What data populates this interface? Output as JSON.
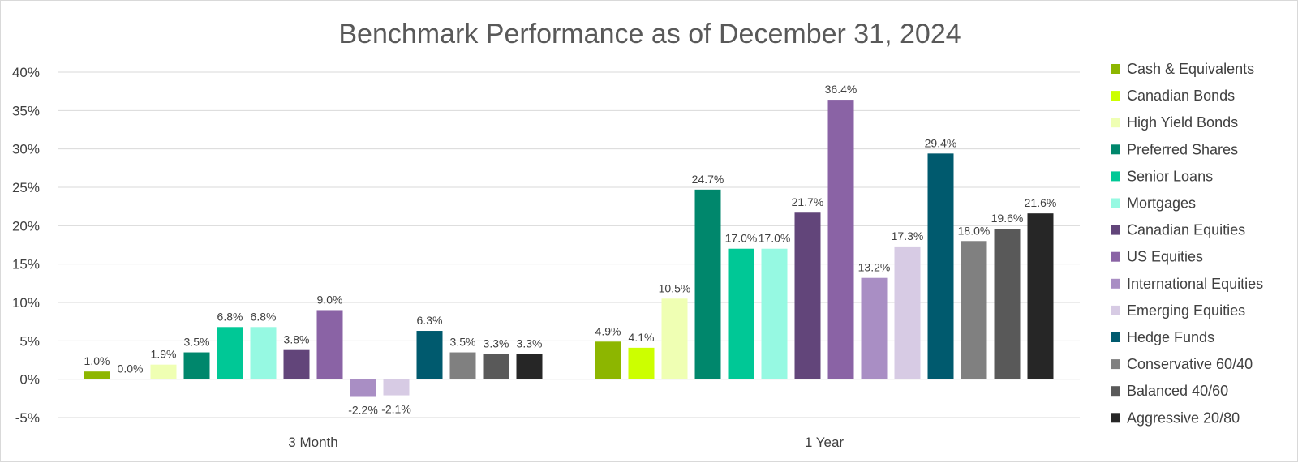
{
  "chart_data": {
    "type": "bar",
    "title": "Benchmark Performance as of December 31, 2024",
    "xlabel": "",
    "ylabel": "",
    "ylim": [
      -5,
      40
    ],
    "yticks": [
      -5,
      0,
      5,
      10,
      15,
      20,
      25,
      30,
      35,
      40
    ],
    "ytick_labels": [
      "-5%",
      "0%",
      "5%",
      "10%",
      "15%",
      "20%",
      "25%",
      "30%",
      "35%",
      "40%"
    ],
    "grid": true,
    "legend_position": "right",
    "categories": [
      "3 Month",
      "1 Year"
    ],
    "series": [
      {
        "name": "Cash & Equivalents",
        "color": "#8db600",
        "values": [
          1.0,
          4.9
        ],
        "labels": [
          "1.0%",
          "4.9%"
        ]
      },
      {
        "name": "Canadian Bonds",
        "color": "#ccff00",
        "values": [
          0.0,
          4.1
        ],
        "labels": [
          "0.0%",
          "4.1%"
        ]
      },
      {
        "name": "High Yield Bonds",
        "color": "#efffb3",
        "values": [
          1.9,
          10.5
        ],
        "labels": [
          "1.9%",
          "10.5%"
        ]
      },
      {
        "name": "Preferred Shares",
        "color": "#00876c",
        "values": [
          3.5,
          24.7
        ],
        "labels": [
          "3.5%",
          "24.7%"
        ]
      },
      {
        "name": "Senior Loans",
        "color": "#00c896",
        "values": [
          6.8,
          17.0
        ],
        "labels": [
          "6.8%",
          "17.0%"
        ]
      },
      {
        "name": "Mortgages",
        "color": "#96f9e2",
        "values": [
          6.8,
          17.0
        ],
        "labels": [
          "6.8%",
          "17.0%"
        ]
      },
      {
        "name": "Canadian Equities",
        "color": "#62457a",
        "values": [
          3.8,
          21.7
        ],
        "labels": [
          "3.8%",
          "21.7%"
        ]
      },
      {
        "name": "US Equities",
        "color": "#8a63a5",
        "values": [
          9.0,
          36.4
        ],
        "labels": [
          "9.0%",
          "36.4%"
        ]
      },
      {
        "name": "International Equities",
        "color": "#a98ec4",
        "values": [
          -2.2,
          13.2
        ],
        "labels": [
          "-2.2%",
          "13.2%"
        ]
      },
      {
        "name": "Emerging Equities",
        "color": "#d7cbe4",
        "values": [
          -2.1,
          17.3
        ],
        "labels": [
          "-2.1%",
          "17.3%"
        ]
      },
      {
        "name": "Hedge Funds",
        "color": "#005a6e",
        "values": [
          6.3,
          29.4
        ],
        "labels": [
          "6.3%",
          "29.4%"
        ]
      },
      {
        "name": "Conservative 60/40",
        "color": "#808080",
        "values": [
          3.5,
          18.0
        ],
        "labels": [
          "3.5%",
          "18.0%"
        ]
      },
      {
        "name": "Balanced 40/60",
        "color": "#595959",
        "values": [
          3.3,
          19.6
        ],
        "labels": [
          "3.3%",
          "19.6%"
        ]
      },
      {
        "name": "Aggressive 20/80",
        "color": "#262626",
        "values": [
          3.3,
          21.6
        ],
        "labels": [
          "3.3%",
          "21.6%"
        ]
      }
    ]
  }
}
